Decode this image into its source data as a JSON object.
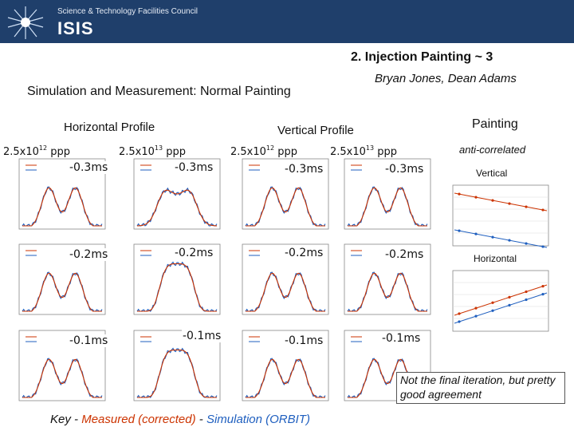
{
  "header": {
    "council": "Science & Technology Facilities Council",
    "brand": "ISIS"
  },
  "slide": {
    "title": "2. Injection Painting ~ 3",
    "authors": "Bryan Jones, Dean Adams",
    "subtitle": "Simulation and Measurement: Normal Painting",
    "horizontal_profile": "Horizontal Profile",
    "vertical_profile": "Vertical Profile",
    "painting": "Painting",
    "anti_correlated": "anti-correlated",
    "vertical": "Vertical",
    "horizontal": "Horizontal",
    "note": "Not the final iteration, but pretty good agreement",
    "key_prefix": "Key",
    "key_sep1": " - ",
    "key_measured": "Measured (corrected)",
    "key_sep2": " - ",
    "key_simulation": "Simulation (ORBIT)"
  },
  "columns": [
    {
      "base": "2.5x10",
      "exp": "12",
      "unit": " ppp"
    },
    {
      "base": "2.5x10",
      "exp": "13",
      "unit": " ppp"
    },
    {
      "base": "2.5x10",
      "exp": "12",
      "unit": " ppp"
    },
    {
      "base": "2.5x10",
      "exp": "13",
      "unit": " ppp"
    }
  ],
  "rows": [
    "-0.3ms",
    "-0.2ms",
    "-0.1ms"
  ],
  "colors": {
    "banner": "#1f3f6b",
    "measured": "#cc3300",
    "simulation": "#1f5fbf"
  }
}
